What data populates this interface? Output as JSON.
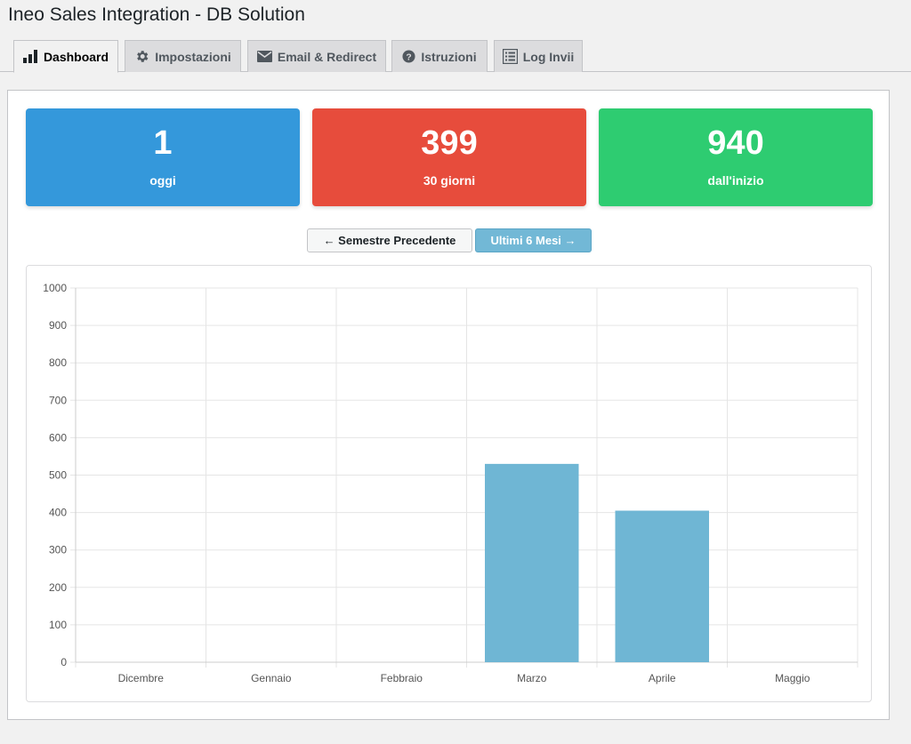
{
  "page": {
    "title": "Ineo Sales Integration - DB Solution"
  },
  "tabs": [
    {
      "label": "Dashboard",
      "icon": "bar-chart-icon",
      "active": true
    },
    {
      "label": "Impostazioni",
      "icon": "gear-icon",
      "active": false
    },
    {
      "label": "Email & Redirect",
      "icon": "envelope-icon",
      "active": false
    },
    {
      "label": "Istruzioni",
      "icon": "question-circle-icon",
      "active": false
    },
    {
      "label": "Log Invii",
      "icon": "list-icon",
      "active": false
    }
  ],
  "stats": [
    {
      "value": "1",
      "label": "oggi",
      "color": "#3498db"
    },
    {
      "value": "399",
      "label": "30 giorni",
      "color": "#e74c3c"
    },
    {
      "value": "940",
      "label": "dall'inizio",
      "color": "#2ecc71"
    }
  ],
  "nav": {
    "prev_label": "← Semestre Precedente",
    "next_label": "Ultimi 6 Mesi →"
  },
  "chart_data": {
    "type": "bar",
    "categories": [
      "Dicembre",
      "Gennaio",
      "Febbraio",
      "Marzo",
      "Aprile",
      "Maggio"
    ],
    "values": [
      0,
      0,
      0,
      530,
      405,
      0
    ],
    "ylim": [
      0,
      1000
    ],
    "yticks": [
      0,
      100,
      200,
      300,
      400,
      500,
      600,
      700,
      800,
      900,
      1000
    ],
    "grid": true,
    "bar_color": "#6fb6d4"
  }
}
